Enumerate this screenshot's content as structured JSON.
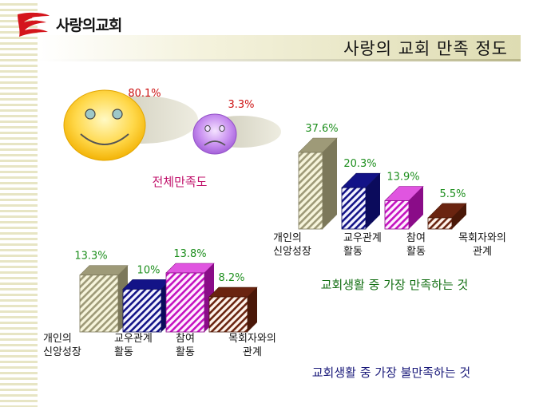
{
  "header": {
    "logo_text": "사랑의교회",
    "title": "사랑의 교회 만족 정도"
  },
  "colors": {
    "percent_red": "#cc1010",
    "percent_green": "#1e8f1e",
    "overall_caption": "#c0106a",
    "caption_green": "#136f13",
    "caption_navy": "#1a1a7a",
    "bar_khaki": "#9e9a78",
    "bar_navy": "#131387",
    "bar_magenta": "#c412c0",
    "bar_brown": "#6a2410"
  },
  "overall": {
    "happy_pct": "80.1%",
    "sad_pct": "3.3%",
    "caption": "전체만족도",
    "icons": [
      "smiley-face",
      "sad-face"
    ]
  },
  "chart_data": [
    {
      "type": "bar",
      "title": "교회생활 중 가장 만족하는 것",
      "categories": [
        "개인의\n신앙성장",
        "교우관계\n활동",
        "참여\n활동",
        "목회자와의\n관계"
      ],
      "category_lines": [
        [
          "개인의",
          "신앙성장"
        ],
        [
          "교우관계",
          "활동"
        ],
        [
          "참여",
          "활동"
        ],
        [
          "목회자와의",
          "관계"
        ]
      ],
      "values": [
        37.6,
        20.3,
        13.9,
        5.5
      ],
      "value_labels": [
        "37.6%",
        "20.3%",
        "13.9%",
        "5.5%"
      ]
    },
    {
      "type": "bar",
      "title": "교회생활 중 가장 불만족하는 것",
      "categories": [
        "개인의\n신앙성장",
        "교우관계\n활동",
        "참여\n활동",
        "목회자와의\n관계"
      ],
      "category_lines": [
        [
          "개인의",
          "신앙성장"
        ],
        [
          "교우관계",
          "활동"
        ],
        [
          "참여",
          "활동"
        ],
        [
          "목회자와의",
          "관계"
        ]
      ],
      "values": [
        13.3,
        10,
        13.8,
        8.2
      ],
      "value_labels": [
        "13.3%",
        "10%",
        "13.8%",
        "8.2%"
      ]
    }
  ]
}
